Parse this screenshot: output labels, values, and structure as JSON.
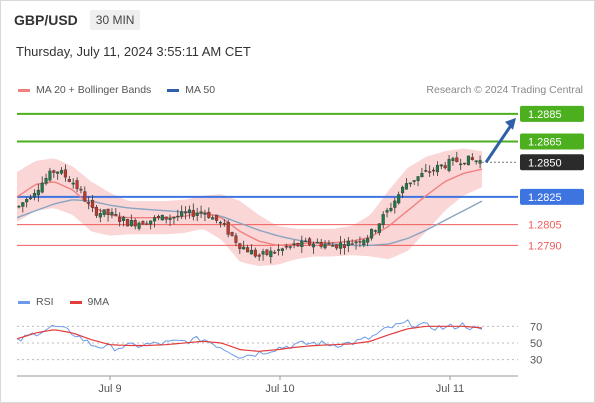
{
  "header": {
    "symbol": "GBP/USD",
    "timeframe": "30 MIN",
    "datetime": "Thursday, July 11, 2024 3:55:11 AM CET"
  },
  "legend": {
    "ma20_label": "MA 20 + Bollinger Bands",
    "ma50_label": "MA 50",
    "credit": "Research © 2024 Trading Central"
  },
  "rsi_legend": {
    "rsi_label": "RSI",
    "ma9_label": "9MA"
  },
  "colors": {
    "green": "#4caf1e",
    "blue": "#3e74e0",
    "red": "#f25c5c",
    "dark": "#2b2b2b",
    "ma20": "#f08080",
    "ma50": "#8aa4c0",
    "band": "#f8c8c8",
    "candle_up": "#1e7a4a",
    "candle_down": "#c0392b",
    "rsi": "#6b9bea",
    "rsi_ma": "#e23c3c",
    "arrow": "#2f5fa8"
  },
  "chart_data": {
    "type": "candlestick",
    "price_levels": [
      {
        "value": 1.2885,
        "label": "1.2885",
        "style": "green"
      },
      {
        "value": 1.2865,
        "label": "1.2865",
        "style": "green"
      },
      {
        "value": 1.285,
        "label": "1.2850",
        "style": "current"
      },
      {
        "value": 1.2825,
        "label": "1.2825",
        "style": "blue"
      },
      {
        "value": 1.2805,
        "label": "1.2805",
        "style": "red"
      },
      {
        "value": 1.279,
        "label": "1.2790",
        "style": "red"
      }
    ],
    "price_ylim": [
      1.2765,
      1.2895
    ],
    "x_ticks": [
      "Jul 9",
      "Jul 10",
      "Jul 11"
    ],
    "rsi_ticks": [
      30,
      50,
      70
    ],
    "rsi_ylim": [
      20,
      80
    ],
    "close_anchors": [
      1.2818,
      1.2832,
      1.2845,
      1.2835,
      1.2815,
      1.2812,
      1.2806,
      1.2808,
      1.281,
      1.2812,
      1.2815,
      1.2805,
      1.279,
      1.2782,
      1.2786,
      1.279,
      1.2792,
      1.279,
      1.2792,
      1.2797,
      1.2815,
      1.2835,
      1.2842,
      1.2848,
      1.2852,
      1.2851
    ],
    "ma20_anchors": [
      1.2825,
      1.2834,
      1.2836,
      1.283,
      1.2818,
      1.2812,
      1.281,
      1.281,
      1.281,
      1.2811,
      1.2814,
      1.281,
      1.28,
      1.2793,
      1.279,
      1.2791,
      1.2792,
      1.2792,
      1.2793,
      1.2796,
      1.2804,
      1.2815,
      1.2826,
      1.2836,
      1.2842,
      1.2845
    ],
    "band_upper_anchors": [
      1.2843,
      1.2851,
      1.2853,
      1.2847,
      1.2836,
      1.2828,
      1.2822,
      1.2822,
      1.2822,
      1.2823,
      1.2826,
      1.2827,
      1.2822,
      1.2812,
      1.2804,
      1.2802,
      1.2802,
      1.2802,
      1.2804,
      1.2812,
      1.283,
      1.2846,
      1.2854,
      1.2858,
      1.286,
      1.2858
    ],
    "band_lower_anchors": [
      1.2807,
      1.2815,
      1.2817,
      1.2812,
      1.28,
      1.2797,
      1.2798,
      1.2798,
      1.2798,
      1.2799,
      1.2802,
      1.2794,
      1.2778,
      1.2775,
      1.2776,
      1.278,
      1.2782,
      1.2782,
      1.2783,
      1.2782,
      1.278,
      1.2786,
      1.28,
      1.2815,
      1.2826,
      1.2832
    ],
    "ma50_anchors": [
      1.281,
      1.2815,
      1.282,
      1.2823,
      1.2822,
      1.2819,
      1.2817,
      1.2816,
      1.2815,
      1.2814,
      1.2813,
      1.2811,
      1.2806,
      1.2801,
      1.2797,
      1.2794,
      1.2792,
      1.2791,
      1.279,
      1.279,
      1.2791,
      1.2795,
      1.2801,
      1.2808,
      1.2815,
      1.2822
    ],
    "rsi_anchors": [
      52,
      62,
      70,
      62,
      48,
      44,
      46,
      48,
      50,
      52,
      55,
      45,
      34,
      38,
      44,
      48,
      50,
      48,
      50,
      56,
      68,
      74,
      70,
      68,
      72,
      64
    ],
    "rsi_ma_anchors": [
      55,
      62,
      66,
      62,
      54,
      48,
      47,
      47,
      48,
      50,
      52,
      50,
      42,
      40,
      42,
      45,
      47,
      48,
      49,
      52,
      60,
      67,
      70,
      70,
      70,
      68
    ],
    "forecast_arrow": {
      "from": 1.285,
      "to": 1.2885
    }
  }
}
